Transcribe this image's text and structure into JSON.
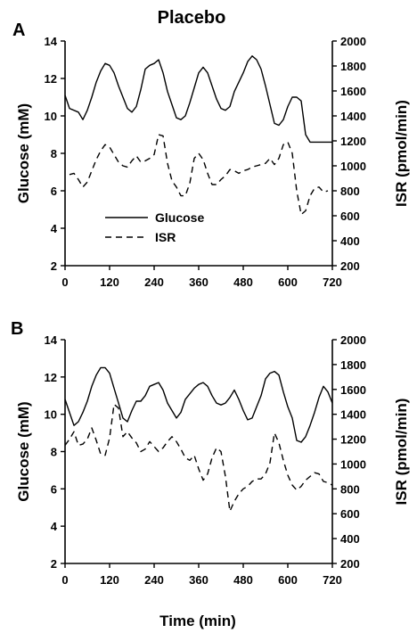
{
  "figure": {
    "title": "Placebo",
    "xlabel": "Time (min)"
  },
  "chart_data": [
    {
      "type": "line",
      "panel_label": "A",
      "xlabel": "",
      "ylabel": "Glucose (mM)",
      "y2label": "ISR (pmol/min)",
      "xlim": [
        0,
        720
      ],
      "ylim": [
        2,
        14
      ],
      "y2lim": [
        200,
        2000
      ],
      "x_ticks": [
        "0",
        "120",
        "240",
        "360",
        "480",
        "600",
        "720"
      ],
      "y_ticks": [
        "2",
        "4",
        "6",
        "8",
        "10",
        "12",
        "14"
      ],
      "y2_ticks": [
        "200",
        "400",
        "600",
        "800",
        "1000",
        "1200",
        "1400",
        "1600",
        "1800",
        "2000"
      ],
      "grid": false,
      "legend": {
        "placement": "lower-left",
        "entries": [
          {
            "label": "Glucose",
            "style": "solid"
          },
          {
            "label": "ISR",
            "style": "dashed"
          }
        ]
      },
      "series": [
        {
          "name": "Glucose",
          "axis": "left",
          "style": "solid",
          "x": [
            0,
            12,
            36,
            48,
            60,
            72,
            84,
            96,
            108,
            120,
            132,
            144,
            168,
            180,
            192,
            204,
            216,
            228,
            240,
            252,
            264,
            276,
            288,
            300,
            312,
            324,
            336,
            348,
            360,
            372,
            384,
            396,
            408,
            420,
            432,
            444,
            456,
            468,
            480,
            492,
            504,
            516,
            528,
            540,
            552,
            564,
            576,
            588,
            600,
            612,
            624,
            636,
            648,
            660,
            672,
            684,
            696,
            708,
            720
          ],
          "values": [
            11.1,
            10.4,
            10.2,
            9.8,
            10.3,
            11.0,
            11.8,
            12.4,
            12.8,
            12.7,
            12.3,
            11.6,
            10.4,
            10.2,
            10.5,
            11.4,
            12.5,
            12.7,
            12.8,
            13.0,
            12.3,
            11.3,
            10.6,
            9.9,
            9.8,
            10.0,
            10.7,
            11.5,
            12.3,
            12.6,
            12.3,
            11.6,
            10.9,
            10.4,
            10.3,
            10.5,
            11.3,
            11.8,
            12.3,
            12.9,
            13.2,
            13.0,
            12.5,
            11.6,
            10.6,
            9.6,
            9.5,
            9.8,
            10.5,
            11.0,
            11.0,
            10.8,
            9.0,
            8.6,
            8.6,
            8.6,
            8.6,
            8.6,
            8.6
          ]
        },
        {
          "name": "ISR",
          "axis": "right",
          "style": "dashed",
          "x": [
            12,
            24,
            36,
            48,
            60,
            72,
            84,
            96,
            108,
            120,
            132,
            144,
            156,
            168,
            180,
            192,
            204,
            216,
            228,
            240,
            252,
            264,
            276,
            288,
            300,
            312,
            324,
            336,
            348,
            360,
            372,
            384,
            396,
            408,
            420,
            432,
            444,
            456,
            468,
            480,
            492,
            504,
            516,
            528,
            540,
            552,
            564,
            576,
            588,
            600,
            612,
            624,
            636,
            648,
            660,
            672,
            684,
            696,
            708
          ],
          "values": [
            930,
            940,
            890,
            830,
            870,
            960,
            1050,
            1120,
            1170,
            1150,
            1090,
            1030,
            1000,
            990,
            1040,
            1080,
            1030,
            1040,
            1060,
            1090,
            1250,
            1240,
            1020,
            880,
            830,
            760,
            760,
            860,
            1060,
            1100,
            1050,
            940,
            850,
            850,
            890,
            920,
            970,
            960,
            940,
            960,
            970,
            990,
            1000,
            1010,
            1020,
            1060,
            1010,
            1060,
            1170,
            1190,
            1100,
            800,
            610,
            640,
            760,
            820,
            830,
            790,
            800
          ]
        }
      ]
    },
    {
      "type": "line",
      "panel_label": "B",
      "xlabel": "Time (min)",
      "ylabel": "Glucose (mM)",
      "y2label": "ISR (pmol/min)",
      "xlim": [
        0,
        720
      ],
      "ylim": [
        2,
        14
      ],
      "y2lim": [
        200,
        2000
      ],
      "x_ticks": [
        "0",
        "120",
        "240",
        "360",
        "480",
        "600",
        "720"
      ],
      "y_ticks": [
        "2",
        "4",
        "6",
        "8",
        "10",
        "12",
        "14"
      ],
      "y2_ticks": [
        "200",
        "400",
        "600",
        "800",
        "1000",
        "1200",
        "1400",
        "1600",
        "1800",
        "2000"
      ],
      "grid": false,
      "series": [
        {
          "name": "Glucose",
          "axis": "left",
          "style": "solid",
          "x": [
            0,
            12,
            24,
            36,
            48,
            60,
            72,
            84,
            96,
            108,
            120,
            132,
            144,
            156,
            168,
            180,
            192,
            204,
            216,
            228,
            240,
            252,
            264,
            276,
            288,
            300,
            312,
            324,
            336,
            348,
            360,
            372,
            384,
            396,
            408,
            420,
            432,
            444,
            456,
            468,
            480,
            492,
            504,
            516,
            528,
            540,
            552,
            564,
            576,
            588,
            600,
            612,
            624,
            636,
            648,
            660,
            672,
            684,
            696,
            708,
            720
          ],
          "values": [
            10.8,
            10.1,
            9.4,
            9.6,
            10.1,
            10.7,
            11.5,
            12.1,
            12.5,
            12.5,
            12.2,
            11.4,
            10.6,
            9.8,
            9.6,
            10.2,
            10.7,
            10.7,
            11.0,
            11.5,
            11.6,
            11.7,
            11.3,
            10.6,
            10.2,
            9.8,
            10.1,
            10.8,
            11.1,
            11.4,
            11.6,
            11.7,
            11.5,
            11.0,
            10.6,
            10.5,
            10.6,
            10.9,
            11.3,
            10.8,
            10.2,
            9.7,
            9.8,
            10.4,
            11.0,
            11.9,
            12.2,
            12.3,
            12.1,
            11.2,
            10.4,
            9.8,
            8.6,
            8.5,
            8.8,
            9.4,
            10.1,
            10.9,
            11.5,
            11.2,
            10.6
          ]
        },
        {
          "name": "ISR",
          "axis": "right",
          "style": "dashed",
          "x": [
            0,
            12,
            24,
            36,
            48,
            60,
            72,
            84,
            96,
            108,
            120,
            132,
            144,
            156,
            168,
            180,
            192,
            204,
            216,
            228,
            240,
            252,
            264,
            276,
            288,
            300,
            312,
            324,
            336,
            348,
            360,
            372,
            384,
            396,
            408,
            420,
            432,
            444,
            456,
            468,
            480,
            492,
            504,
            516,
            528,
            540,
            552,
            564,
            576,
            588,
            600,
            612,
            624,
            636,
            648,
            660,
            672,
            684,
            696,
            708,
            720
          ],
          "values": [
            1150,
            1200,
            1260,
            1150,
            1160,
            1200,
            1290,
            1190,
            1080,
            1070,
            1210,
            1480,
            1450,
            1220,
            1260,
            1210,
            1170,
            1100,
            1120,
            1180,
            1140,
            1100,
            1130,
            1180,
            1220,
            1180,
            1120,
            1050,
            1030,
            1070,
            960,
            870,
            920,
            1050,
            1130,
            1100,
            900,
            620,
            700,
            760,
            800,
            820,
            860,
            880,
            880,
            920,
            1010,
            1250,
            1170,
            1030,
            910,
            830,
            790,
            820,
            870,
            900,
            930,
            920,
            860,
            850,
            830
          ]
        }
      ]
    }
  ]
}
